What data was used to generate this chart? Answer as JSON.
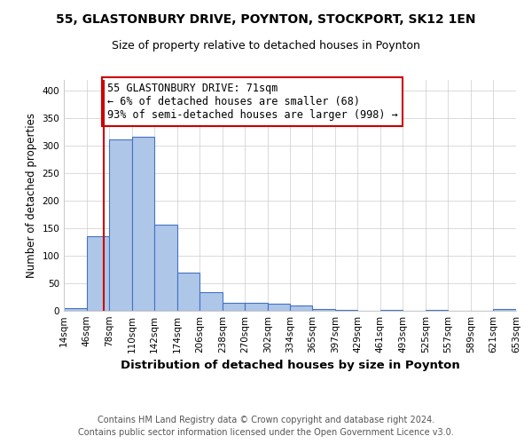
{
  "title": "55, GLASTONBURY DRIVE, POYNTON, STOCKPORT, SK12 1EN",
  "subtitle": "Size of property relative to detached houses in Poynton",
  "xlabel": "Distribution of detached houses by size in Poynton",
  "ylabel": "Number of detached properties",
  "footnote1": "Contains HM Land Registry data © Crown copyright and database right 2024.",
  "footnote2": "Contains public sector information licensed under the Open Government Licence v3.0.",
  "annotation_line1": "55 GLASTONBURY DRIVE: 71sqm",
  "annotation_line2": "← 6% of detached houses are smaller (68)",
  "annotation_line3": "93% of semi-detached houses are larger (998) →",
  "property_size": 71,
  "bin_edges": [
    14,
    46,
    78,
    110,
    142,
    174,
    206,
    238,
    270,
    302,
    334,
    365,
    397,
    429,
    461,
    493,
    525,
    557,
    589,
    621,
    653
  ],
  "bin_labels": [
    "14sqm",
    "46sqm",
    "78sqm",
    "110sqm",
    "142sqm",
    "174sqm",
    "206sqm",
    "238sqm",
    "270sqm",
    "302sqm",
    "334sqm",
    "365sqm",
    "397sqm",
    "429sqm",
    "461sqm",
    "493sqm",
    "525sqm",
    "557sqm",
    "589sqm",
    "621sqm",
    "653sqm"
  ],
  "bar_heights": [
    5,
    136,
    311,
    317,
    156,
    70,
    34,
    14,
    15,
    13,
    9,
    4,
    2,
    0,
    1,
    0,
    2,
    0,
    0,
    3
  ],
  "bar_color": "#aec6e8",
  "bar_edge_color": "#4472c4",
  "bar_edge_width": 0.8,
  "vline_x": 71,
  "vline_color": "#cc0000",
  "annotation_box_color": "#cc0000",
  "ylim": [
    0,
    420
  ],
  "yticks": [
    0,
    50,
    100,
    150,
    200,
    250,
    300,
    350,
    400
  ],
  "grid_color": "#cccccc",
  "background_color": "#ffffff",
  "title_fontsize": 10,
  "subtitle_fontsize": 9,
  "xlabel_fontsize": 9.5,
  "ylabel_fontsize": 8.5,
  "tick_fontsize": 7.5,
  "annotation_fontsize": 8.5,
  "footnote_fontsize": 7
}
